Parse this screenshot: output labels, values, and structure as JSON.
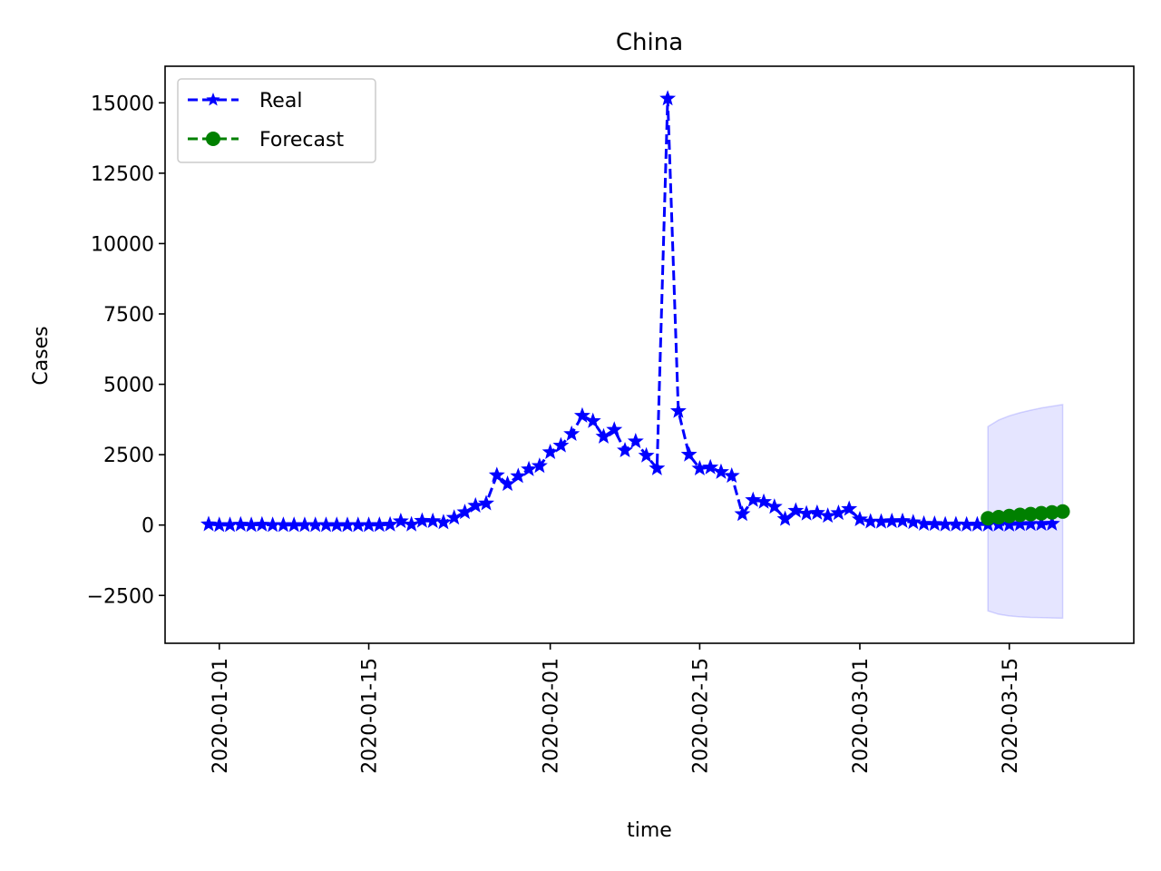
{
  "chart_data": {
    "type": "line",
    "title": "China",
    "xlabel": "time",
    "ylabel": "Cases",
    "x_start": "2019-12-31",
    "x_tick_labels": [
      "2020-01-01",
      "2020-01-15",
      "2020-02-01",
      "2020-02-15",
      "2020-03-01",
      "2020-03-15"
    ],
    "y_ticks": [
      -2500,
      0,
      2500,
      5000,
      7500,
      10000,
      12500,
      15000
    ],
    "y_tick_labels": [
      "−2500",
      "0",
      "2500",
      "5000",
      "7500",
      "10000",
      "12500",
      "15000"
    ],
    "ylim": [
      -4200,
      16300
    ],
    "grid": false,
    "legend_position": "top-left",
    "series": [
      {
        "name": "Real",
        "color": "#0000ff",
        "marker": "star",
        "linestyle": "dashed",
        "values": [
          27,
          0,
          0,
          17,
          0,
          15,
          0,
          0,
          0,
          0,
          0,
          0,
          0,
          0,
          0,
          0,
          4,
          17,
          136,
          19,
          151,
          140,
          97,
          259,
          457,
          688,
          769,
          1771,
          1459,
          1737,
          1981,
          2099,
          2589,
          2825,
          3235,
          3884,
          3694,
          3143,
          3385,
          2652,
          2973,
          2467,
          2015,
          15152,
          4050,
          2502,
          2009,
          2048,
          1886,
          1749,
          391,
          889,
          823,
          648,
          214,
          508,
          406,
          433,
          327,
          427,
          573,
          202,
          125,
          119,
          139,
          143,
          99,
          44,
          40,
          19,
          24,
          15,
          20,
          16,
          21,
          13,
          34,
          39,
          41,
          46
        ]
      },
      {
        "name": "Forecast",
        "color": "#008000",
        "marker": "circle",
        "linestyle": "dashed",
        "x_offset": 73,
        "values": [
          240,
          280,
          320,
          360,
          390,
          420,
          450,
          480
        ]
      }
    ],
    "confidence_band": {
      "color": "#0000ff",
      "x_offset": 73,
      "lower": [
        -3050,
        -3170,
        -3230,
        -3260,
        -3280,
        -3290,
        -3300,
        -3310
      ],
      "upper": [
        3500,
        3730,
        3880,
        3990,
        4080,
        4160,
        4220,
        4280
      ]
    }
  }
}
